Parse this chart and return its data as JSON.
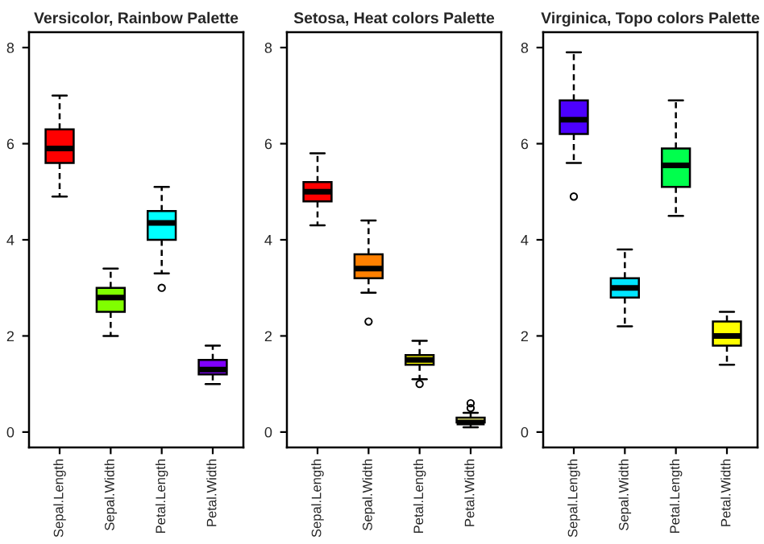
{
  "chart_data": [
    {
      "type": "box",
      "title": "Versicolor, Rainbow Palette",
      "categories": [
        "Sepal.Length",
        "Sepal.Width",
        "Petal.Length",
        "Petal.Width"
      ],
      "colors": [
        "#ff0000",
        "#80ff00",
        "#00ffff",
        "#8000ff"
      ],
      "ylim": [
        -0.32,
        8.32
      ],
      "yticks": [
        0,
        2,
        4,
        6,
        8
      ],
      "grid": false,
      "legend": false,
      "boxes": [
        {
          "low": 4.9,
          "q1": 5.6,
          "median": 5.9,
          "q3": 6.3,
          "high": 7.0
        },
        {
          "low": 2.0,
          "q1": 2.5,
          "median": 2.8,
          "q3": 3.0,
          "high": 3.4
        },
        {
          "low": 3.3,
          "q1": 4.0,
          "median": 4.35,
          "q3": 4.6,
          "high": 5.1,
          "outliers": [
            3.0
          ]
        },
        {
          "low": 1.0,
          "q1": 1.2,
          "median": 1.3,
          "q3": 1.5,
          "high": 1.8
        }
      ]
    },
    {
      "type": "box",
      "title": "Setosa, Heat colors Palette",
      "categories": [
        "Sepal.Length",
        "Sepal.Width",
        "Petal.Length",
        "Petal.Width"
      ],
      "colors": [
        "#ff0000",
        "#ff8000",
        "#ffff00",
        "#ffff80"
      ],
      "ylim": [
        -0.32,
        8.32
      ],
      "yticks": [
        0,
        2,
        4,
        6,
        8
      ],
      "grid": false,
      "legend": false,
      "boxes": [
        {
          "low": 4.3,
          "q1": 4.8,
          "median": 5.0,
          "q3": 5.2,
          "high": 5.8
        },
        {
          "low": 2.9,
          "q1": 3.2,
          "median": 3.4,
          "q3": 3.7,
          "high": 4.4,
          "outliers": [
            2.3
          ]
        },
        {
          "low": 1.1,
          "q1": 1.4,
          "median": 1.5,
          "q3": 1.6,
          "high": 1.9,
          "outliers": [
            1.0
          ]
        },
        {
          "low": 0.1,
          "q1": 0.2,
          "median": 0.2,
          "q3": 0.3,
          "high": 0.4,
          "outliers": [
            0.5,
            0.6
          ]
        }
      ]
    },
    {
      "type": "box",
      "title": "Virginica, Topo colors Palette",
      "categories": [
        "Sepal.Length",
        "Sepal.Width",
        "Petal.Length",
        "Petal.Width"
      ],
      "colors": [
        "#4c00ff",
        "#00e5ff",
        "#00ff4d",
        "#ffff00"
      ],
      "ylim": [
        -0.32,
        8.32
      ],
      "yticks": [
        0,
        2,
        4,
        6,
        8
      ],
      "grid": false,
      "legend": false,
      "boxes": [
        {
          "low": 5.6,
          "q1": 6.2,
          "median": 6.5,
          "q3": 6.9,
          "high": 7.9,
          "outliers": [
            4.9
          ]
        },
        {
          "low": 2.2,
          "q1": 2.8,
          "median": 3.0,
          "q3": 3.2,
          "high": 3.8
        },
        {
          "low": 4.5,
          "q1": 5.1,
          "median": 5.55,
          "q3": 5.9,
          "high": 6.9
        },
        {
          "low": 1.4,
          "q1": 1.8,
          "median": 2.0,
          "q3": 2.3,
          "high": 2.5
        }
      ]
    }
  ]
}
